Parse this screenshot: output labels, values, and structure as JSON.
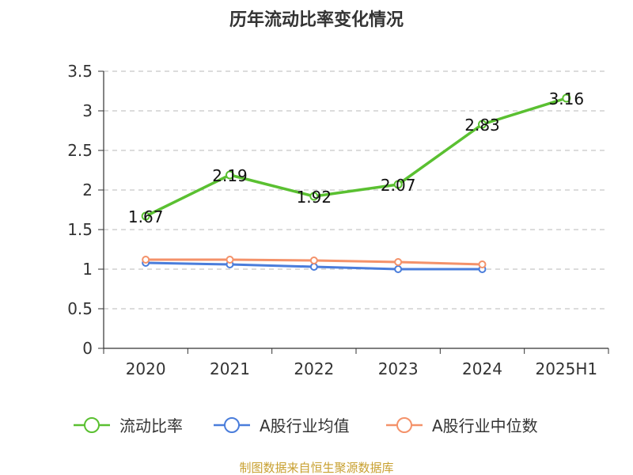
{
  "chart_data": {
    "type": "line",
    "title": "历年流动比率变化情况",
    "categories": [
      "2020",
      "2021",
      "2022",
      "2023",
      "2024",
      "2025H1"
    ],
    "y_ticks": [
      "0",
      "0.5",
      "1",
      "1.5",
      "2",
      "2.5",
      "3",
      "3.5"
    ],
    "ylim": [
      0,
      3.5
    ],
    "grid": true,
    "legend_position": "bottom",
    "series": [
      {
        "name": "流动比率",
        "color": "#5ac031",
        "values": [
          1.67,
          2.19,
          1.92,
          2.07,
          2.83,
          3.16
        ],
        "labels": [
          "1.67",
          "2.19",
          "1.92",
          "2.07",
          "2.83",
          "3.16"
        ],
        "show_labels": true
      },
      {
        "name": "A股行业均值",
        "color": "#4a7ddb",
        "values": [
          1.08,
          1.06,
          1.03,
          1.0,
          1.0,
          null
        ],
        "show_labels": false
      },
      {
        "name": "A股行业中位数",
        "color": "#f4926a",
        "values": [
          1.12,
          1.12,
          1.11,
          1.09,
          1.06,
          null
        ],
        "show_labels": false
      }
    ]
  },
  "source_text": "制图数据来自恒生聚源数据库",
  "source_color": "#c8a030"
}
